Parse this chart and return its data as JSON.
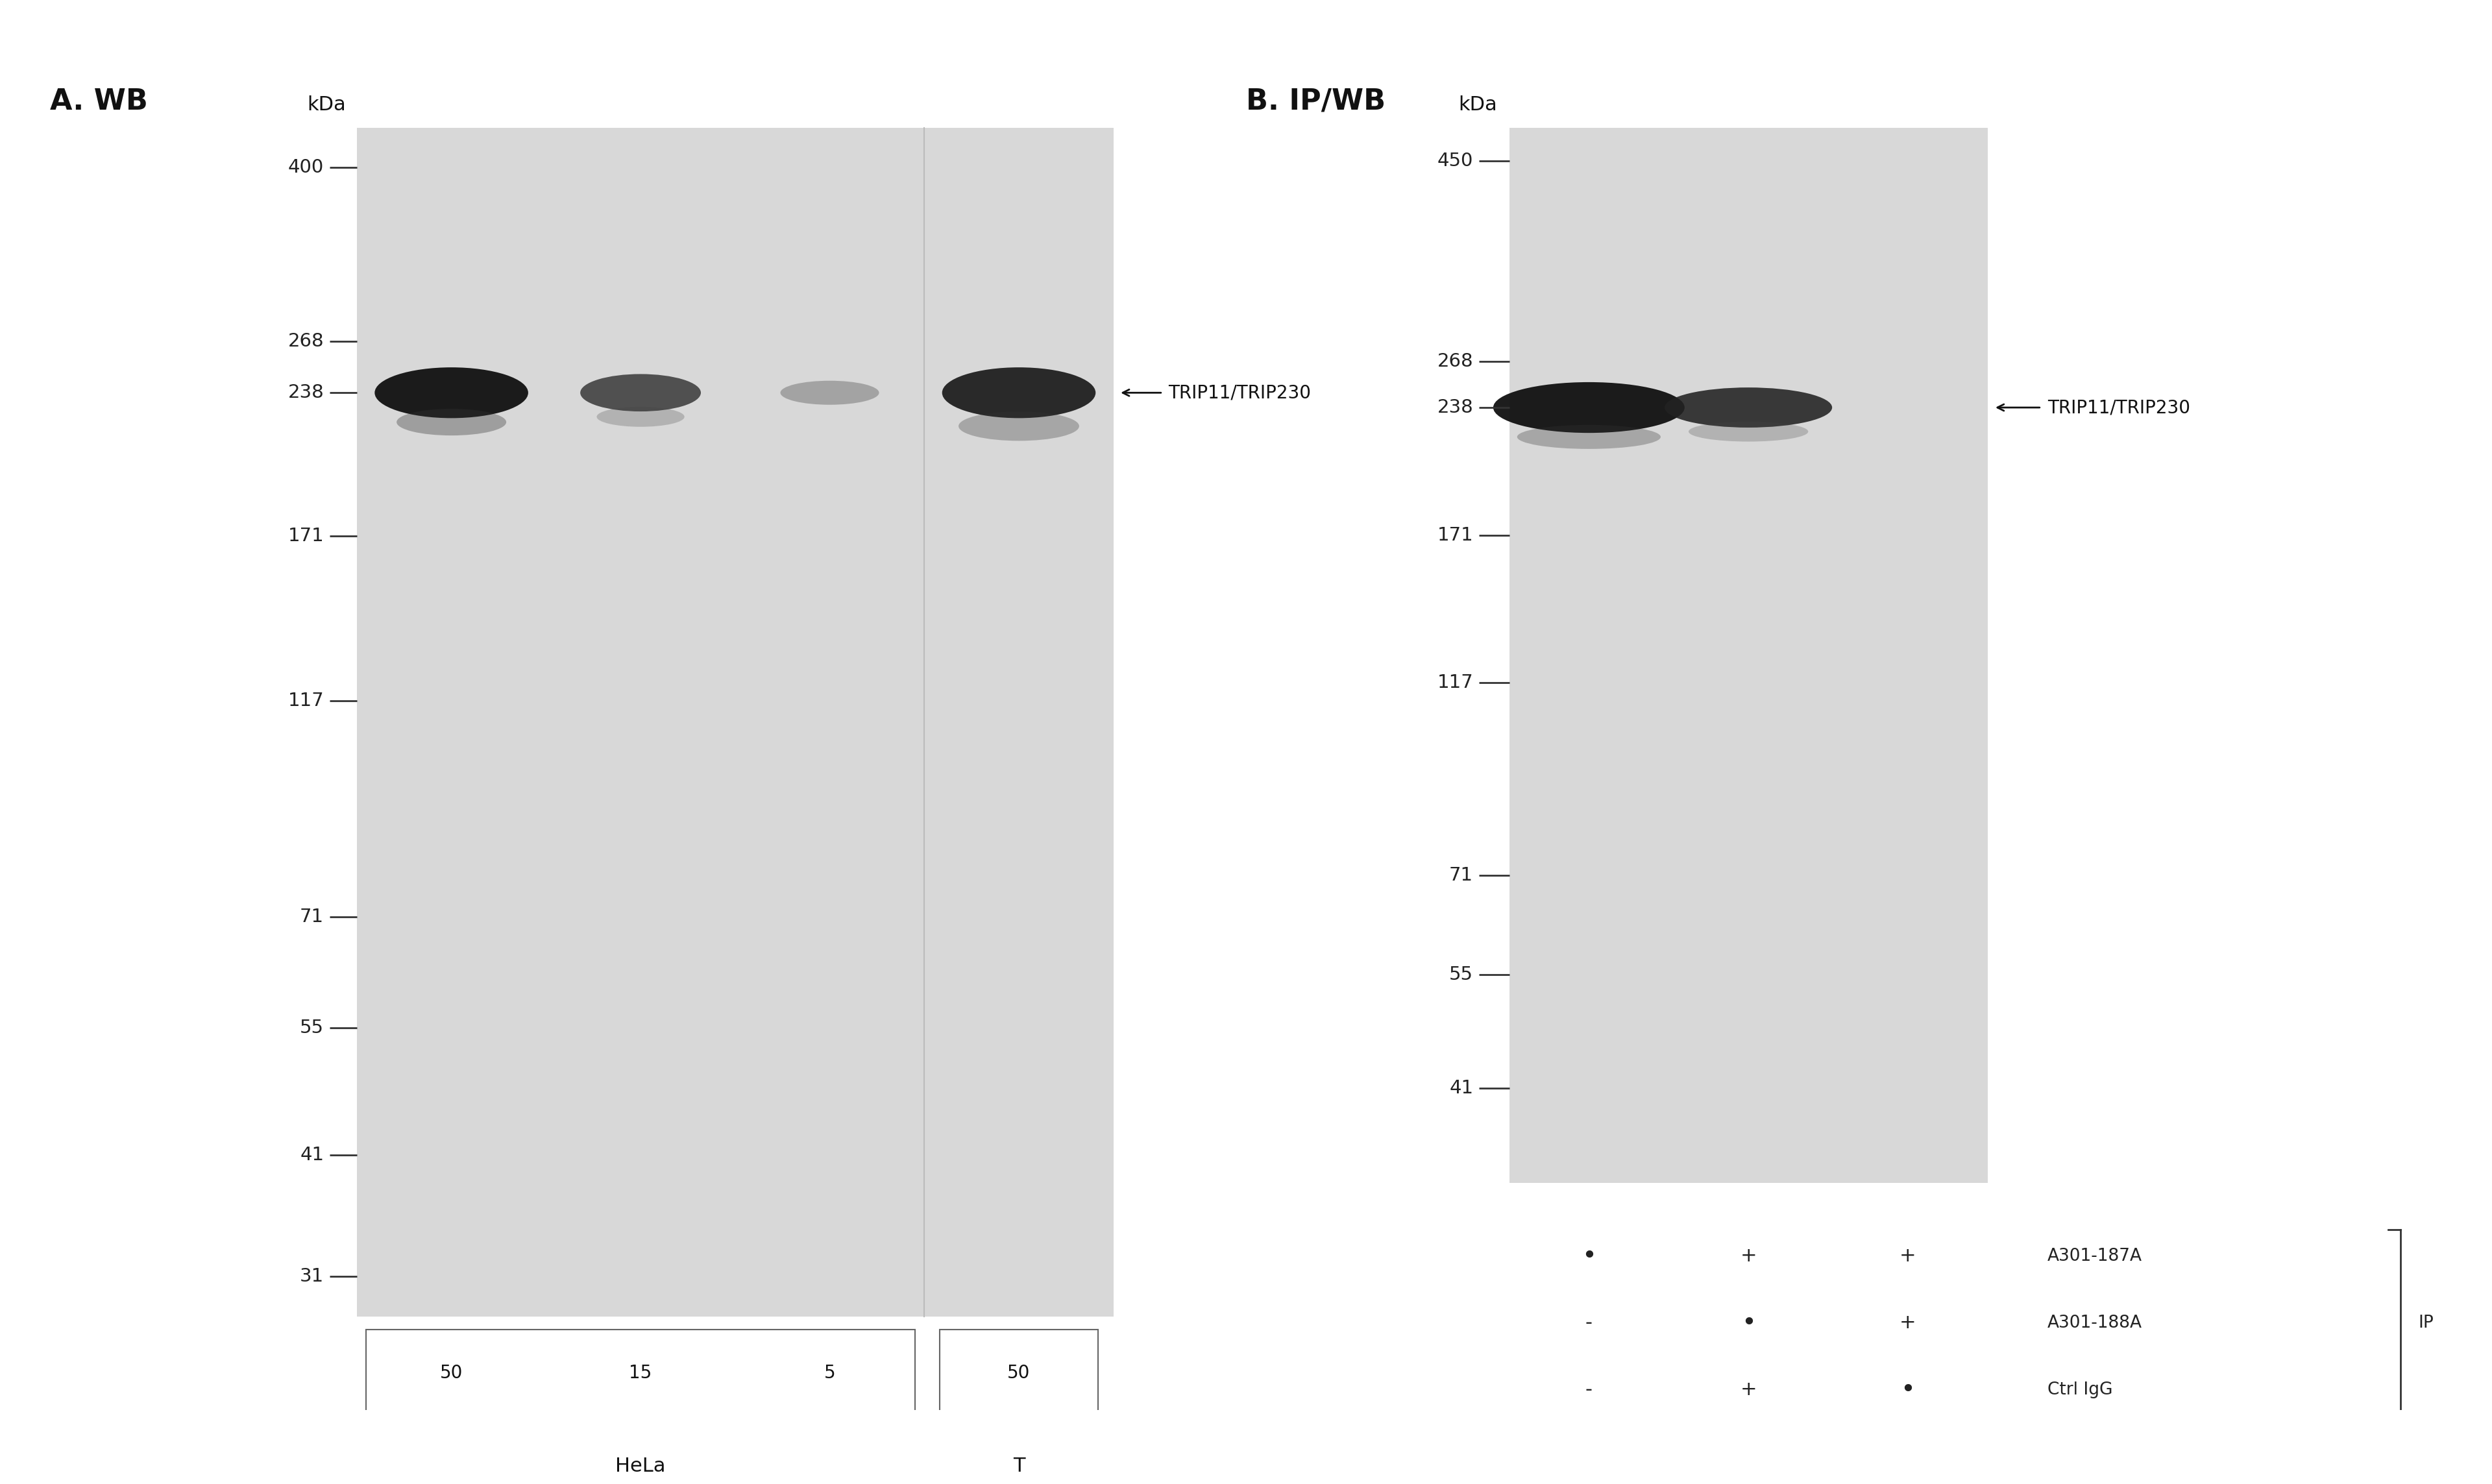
{
  "bg_color": "#ffffff",
  "gel_bg_A": "#dcdcdc",
  "gel_bg_B": "#dcdcdc",
  "panel_A_title": "A. WB",
  "panel_B_title": "B. IP/WB",
  "kDa_label": "kDa",
  "marker_labels_A": [
    "400",
    "268",
    "238",
    "171",
    "117",
    "71",
    "55",
    "41",
    "31"
  ],
  "marker_labels_B": [
    "450",
    "268",
    "238",
    "171",
    "117",
    "71",
    "55",
    "41"
  ],
  "band_label": "TRIP11/TRIP230",
  "band_color_dark": "#1a1a1a",
  "band_color_medium": "#555555",
  "band_color_faint": "#999999",
  "text_color": "#333333",
  "tick_color": "#333333",
  "dot_labels_B": [
    "A301-187A",
    "A301-188A",
    "Ctrl IgG"
  ],
  "ip_label": "IP",
  "cell_label_A": "HeLa",
  "cell_label_T": "T",
  "lane_labels_A": [
    "50",
    "15",
    "5",
    "50"
  ]
}
